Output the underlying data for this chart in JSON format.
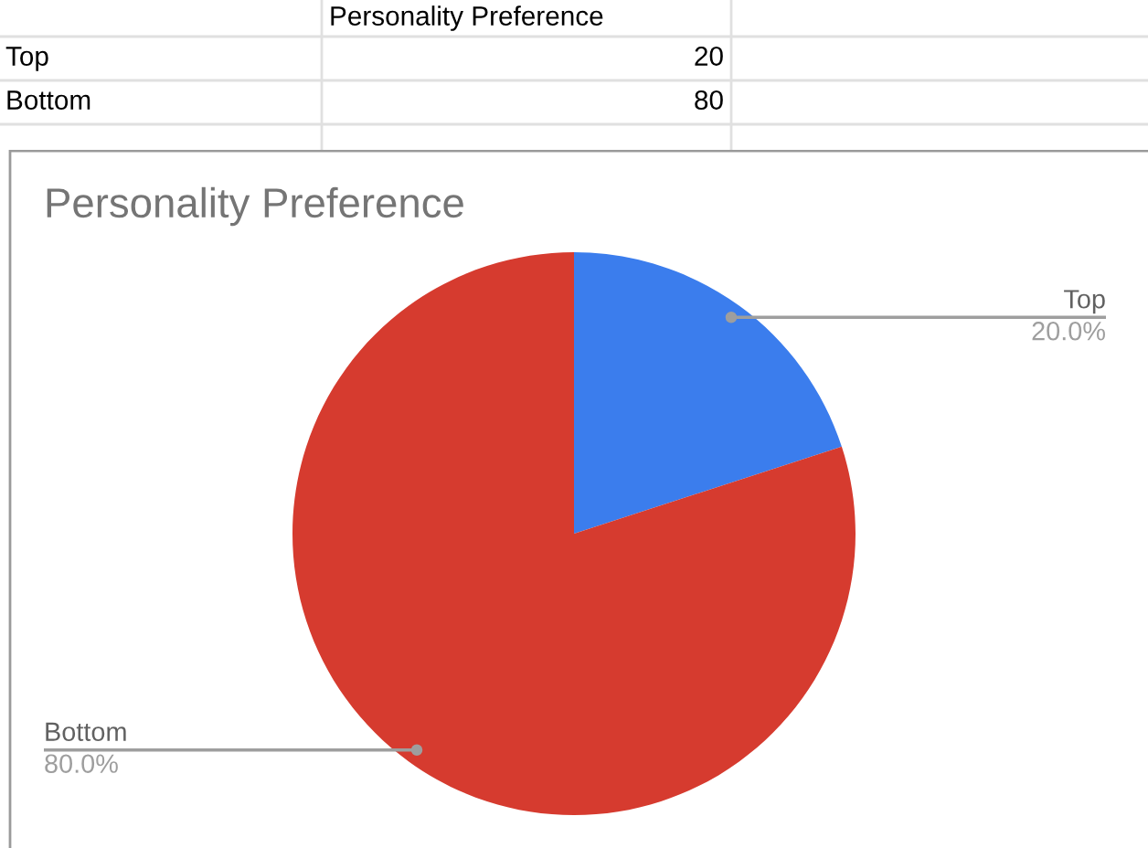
{
  "chart_data": [
    {
      "type": "other",
      "categories": [
        "Top",
        "Bottom"
      ],
      "series": [
        {
          "name": "Personality Preference",
          "values": [
            20,
            80
          ]
        }
      ],
      "data_labels": true
    },
    {
      "type": "pie",
      "title": "Personality Preference",
      "categories": [
        "Top",
        "Bottom"
      ],
      "values": [
        20,
        80
      ],
      "colors": [
        "#3b7ded",
        "#d63b2f"
      ],
      "value_labels": [
        "20.0%",
        "80.0%"
      ]
    }
  ]
}
